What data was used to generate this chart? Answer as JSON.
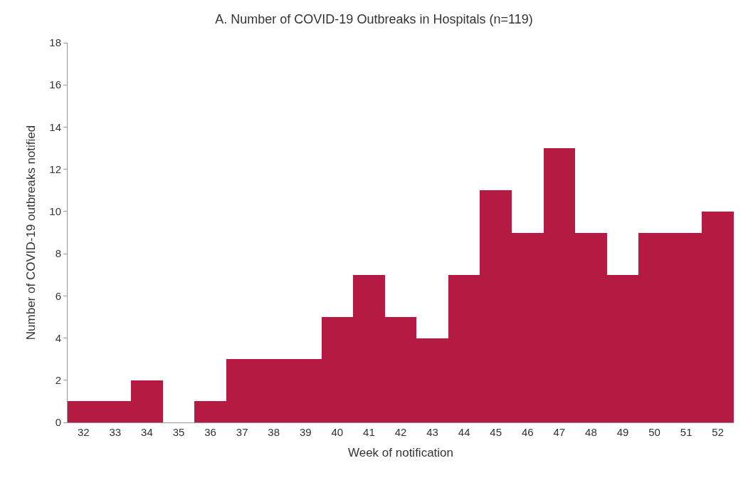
{
  "chart_data": {
    "type": "bar",
    "title": "A. Number of COVID-19 Outbreaks in Hospitals (n=119)",
    "xlabel": "Week of notification",
    "ylabel": "Number of COVID-19 outbreaks notified",
    "categories": [
      "32",
      "33",
      "34",
      "35",
      "36",
      "37",
      "38",
      "39",
      "40",
      "41",
      "42",
      "43",
      "44",
      "45",
      "46",
      "47",
      "48",
      "49",
      "50",
      "51",
      "52"
    ],
    "values": [
      1,
      1,
      2,
      0,
      1,
      3,
      3,
      3,
      5,
      7,
      5,
      4,
      7,
      11,
      9,
      13,
      9,
      7,
      9,
      9,
      10
    ],
    "color": "#b51a42",
    "ylim": [
      0,
      18
    ],
    "yticks": [
      0,
      2,
      4,
      6,
      8,
      10,
      12,
      14,
      16,
      18
    ]
  }
}
